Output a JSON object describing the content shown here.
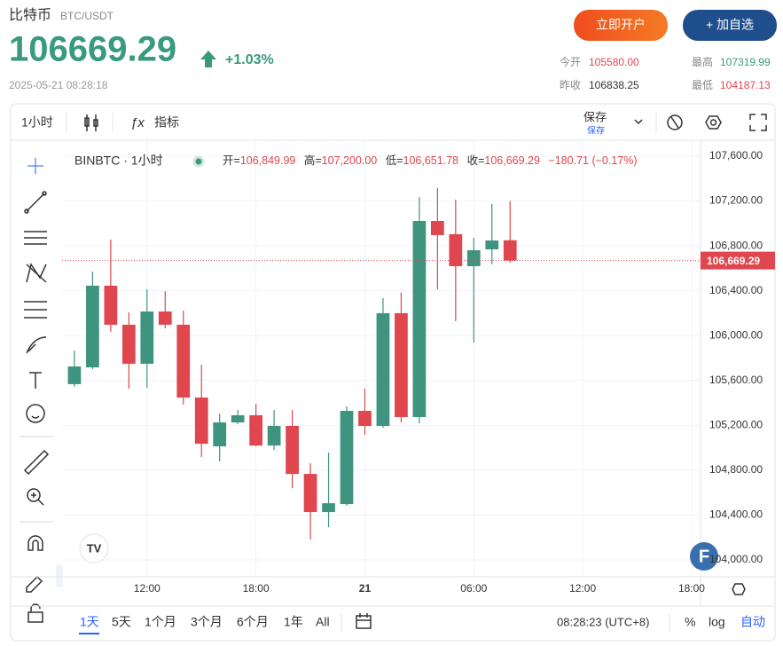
{
  "header": {
    "name": "比特币",
    "pair": "BTC/USDT",
    "price": "106669.29",
    "change": "+1.03%",
    "time": "2025-05-21 08:28:18",
    "open_account": "立即开户",
    "add_watch": "+ 加自选",
    "stats": [
      {
        "label": "今开",
        "value": "105580.00"
      },
      {
        "label": "最高",
        "value": "107319.99"
      },
      {
        "label": "昨收",
        "value": "106838.25"
      },
      {
        "label": "最低",
        "value": "104187.13"
      }
    ]
  },
  "toolbar": {
    "interval": "1小时",
    "indicators": "指标",
    "save": "保存",
    "save_sub": "保存"
  },
  "legend": {
    "title": "BINBTC · 1小时",
    "items": [
      {
        "label": "开=",
        "value": "106,849.99"
      },
      {
        "label": "高=",
        "value": "107,200.00"
      },
      {
        "label": "低=",
        "value": "106,651.78"
      },
      {
        "label": "收=",
        "value": "106,669.29"
      }
    ],
    "change": "−180.71 (−0.17%)"
  },
  "chart_data": {
    "type": "candlestick",
    "up_color": "#3f9480",
    "down_color": "#e0464e",
    "grid": true,
    "x": [
      0,
      1,
      2,
      3,
      4,
      5,
      6,
      7,
      8,
      9,
      10,
      11,
      12,
      13,
      14,
      15,
      16,
      17,
      18,
      19,
      20,
      21,
      22,
      23,
      24
    ],
    "open": [
      105567,
      105717,
      106445,
      106097,
      105749,
      106215,
      106097,
      105448,
      105013,
      105226,
      105290,
      105020,
      105195,
      104767,
      104427,
      104498,
      105329,
      105195,
      106200,
      105274,
      107022,
      106904,
      106619,
      106769,
      106849.99
    ],
    "high": [
      105867,
      106571,
      106856,
      106207,
      106413,
      106397,
      106223,
      105741,
      105305,
      105337,
      105393,
      105337,
      105337,
      104862,
      104957,
      105369,
      105527,
      106334,
      106382,
      107236,
      107315,
      107212,
      106872,
      107173,
      107200
    ],
    "low": [
      105543,
      105701,
      106033,
      105527,
      105535,
      106065,
      105385,
      104918,
      104878,
      105211,
      105013,
      104981,
      104641,
      104182,
      104293,
      104483,
      105116,
      105179,
      105226,
      105218,
      106413,
      106128,
      105938,
      106635,
      106651.78
    ],
    "close": [
      105725,
      106445,
      106097,
      105749,
      106215,
      106097,
      105448,
      105036,
      105226,
      105290,
      105020,
      105195,
      104767,
      104427,
      104506,
      105329,
      105195,
      106200,
      105274,
      107022,
      106896,
      106619,
      106761,
      106848,
      106669.29
    ],
    "xlim": [
      -0.68,
      34.49
    ],
    "xticks": [
      {
        "value": 4,
        "label": "12:00"
      },
      {
        "value": 10,
        "label": "18:00"
      },
      {
        "value": 16,
        "label": "21"
      },
      {
        "value": 22,
        "label": "06:00"
      },
      {
        "value": 28,
        "label": "12:00"
      },
      {
        "value": 34,
        "label": "18:00"
      }
    ],
    "ylim": [
      103850,
      107742
    ],
    "yticks": [
      {
        "value": 104000,
        "label": "104,000.00"
      },
      {
        "value": 104400,
        "label": "104,400.00"
      },
      {
        "value": 104800,
        "label": "104,800.00"
      },
      {
        "value": 105200,
        "label": "105,200.00"
      },
      {
        "value": 105600,
        "label": "105,600.00"
      },
      {
        "value": 106000,
        "label": "106,000.00"
      },
      {
        "value": 106400,
        "label": "106,400.00"
      },
      {
        "value": 106800,
        "label": "106,800.00"
      },
      {
        "value": 107200,
        "label": "107,200.00"
      },
      {
        "value": 107600,
        "label": "107,600.00"
      }
    ],
    "last_price": {
      "value": 106669.29,
      "label": "106,669.29"
    }
  },
  "bottom": {
    "ranges": [
      "1天",
      "5天",
      "1个月",
      "3个月",
      "6个月",
      "1年",
      "All"
    ],
    "clock": "08:28:23 (UTC+8)",
    "percent": "%",
    "log": "log",
    "auto": "自动"
  }
}
